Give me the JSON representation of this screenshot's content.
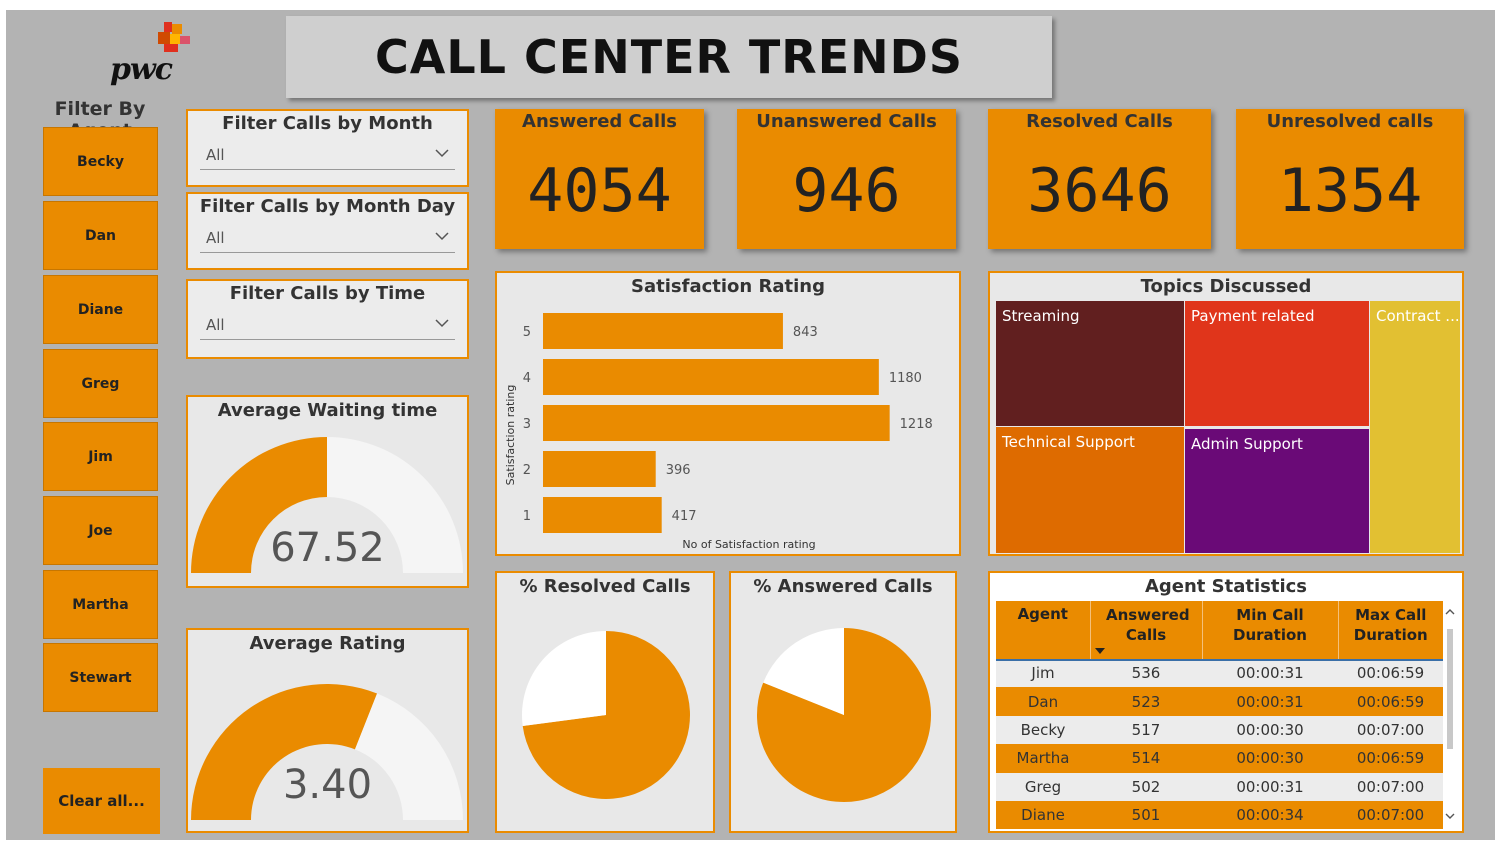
{
  "header": {
    "title": "CALL CENTER TRENDS",
    "logo_text": "pwc"
  },
  "agent_filter": {
    "label": "Filter By Agent",
    "agents": [
      "Becky",
      "Dan",
      "Diane",
      "Greg",
      "Jim",
      "Joe",
      "Martha",
      "Stewart"
    ],
    "clear_label": "Clear all..."
  },
  "slicers": [
    {
      "label": "Filter Calls by Month",
      "value": "All"
    },
    {
      "label": "Filter Calls by Month Day",
      "value": "All"
    },
    {
      "label": "Filter Calls by Time",
      "value": "All"
    }
  ],
  "kpis": [
    {
      "label": "Answered Calls",
      "value": "4054"
    },
    {
      "label": "Unanswered Calls",
      "value": "946"
    },
    {
      "label": "Resolved Calls",
      "value": "3646"
    },
    {
      "label": "Unresolved calls",
      "value": "1354"
    }
  ],
  "gauges": {
    "waiting": {
      "title": "Average Waiting time",
      "value": "67.52",
      "fraction": 0.5
    },
    "rating": {
      "title": "Average Rating",
      "value": "3.40",
      "fraction": 0.62
    }
  },
  "chart_data": [
    {
      "type": "bar",
      "orientation": "horizontal",
      "title": "Satisfaction Rating",
      "xlabel": "No of Satisfaction rating",
      "ylabel": "Satisfaction rating",
      "categories": [
        "5",
        "4",
        "3",
        "2",
        "1"
      ],
      "values": [
        843,
        1180,
        1218,
        396,
        417
      ],
      "xlim": [
        0,
        1300
      ],
      "color": "#ea8b00",
      "grid": false
    },
    {
      "type": "pie",
      "title": "% Resolved Calls",
      "labels": [
        "Resolved",
        "Unresolved"
      ],
      "values": [
        3646,
        1354
      ],
      "colors": [
        "#ea8b00",
        "#ffffff"
      ]
    },
    {
      "type": "pie",
      "title": "% Answered Calls",
      "labels": [
        "Answered",
        "Unanswered"
      ],
      "values": [
        4054,
        946
      ],
      "colors": [
        "#ea8b00",
        "#ffffff"
      ]
    }
  ],
  "treemap": {
    "title": "Topics Discussed",
    "items": [
      {
        "label": "Streaming",
        "color": "#611f1f"
      },
      {
        "label": "Payment related",
        "color": "#e0351b"
      },
      {
        "label": "Contract ...",
        "color": "#e2c032"
      },
      {
        "label": "Technical Support",
        "color": "#de6b00"
      },
      {
        "label": "Admin Support",
        "color": "#6a0a77"
      }
    ]
  },
  "agent_stats": {
    "title": "Agent Statistics",
    "headers": [
      "Agent",
      "Answered Calls",
      "Min Call Duration",
      "Max Call Duration"
    ],
    "rows": [
      [
        "Jim",
        "536",
        "00:00:31",
        "00:06:59"
      ],
      [
        "Dan",
        "523",
        "00:00:31",
        "00:06:59"
      ],
      [
        "Becky",
        "517",
        "00:00:30",
        "00:07:00"
      ],
      [
        "Martha",
        "514",
        "00:00:30",
        "00:06:59"
      ],
      [
        "Greg",
        "502",
        "00:00:31",
        "00:07:00"
      ],
      [
        "Diane",
        "501",
        "00:00:34",
        "00:07:00"
      ]
    ]
  }
}
